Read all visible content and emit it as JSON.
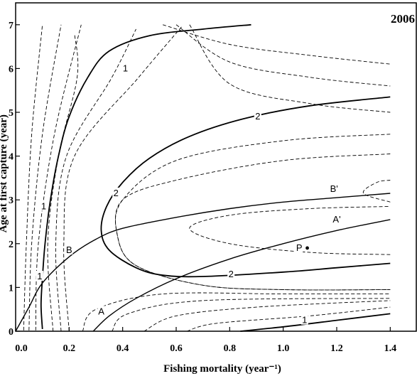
{
  "chart_data": {
    "type": "contour",
    "title": "2006",
    "xlabel": "Fishing mortality (year⁻¹)",
    "ylabel": "Age at first capture (year)",
    "xlim": [
      0,
      1.5
    ],
    "ylim": [
      0,
      7.5
    ],
    "xticks": [
      "0.0",
      "0.2",
      "0.4",
      "0.6",
      "0.8",
      "1.0",
      "1.2",
      "1.4"
    ],
    "yticks": [
      "0",
      "1",
      "2",
      "3",
      "4",
      "5",
      "6",
      "7"
    ],
    "contours_solid": [
      {
        "label": "1",
        "points": [
          [
            0.1,
            0.05
          ],
          [
            0.095,
            0.6
          ],
          [
            0.1,
            1.2
          ],
          [
            0.11,
            2.0
          ],
          [
            0.13,
            3.0
          ],
          [
            0.16,
            4.0
          ],
          [
            0.2,
            4.9
          ],
          [
            0.27,
            5.8
          ],
          [
            0.35,
            6.4
          ],
          [
            0.5,
            6.75
          ],
          [
            0.7,
            6.9
          ],
          [
            0.88,
            7.0
          ]
        ]
      },
      {
        "label": "2",
        "points": [
          [
            1.4,
            5.35
          ],
          [
            1.1,
            5.15
          ],
          [
            0.85,
            4.85
          ],
          [
            0.65,
            4.45
          ],
          [
            0.5,
            3.95
          ],
          [
            0.4,
            3.4
          ],
          [
            0.34,
            2.85
          ],
          [
            0.32,
            2.3
          ],
          [
            0.35,
            1.85
          ],
          [
            0.45,
            1.45
          ],
          [
            0.55,
            1.28
          ],
          [
            0.7,
            1.25
          ],
          [
            1.0,
            1.35
          ],
          [
            1.2,
            1.45
          ],
          [
            1.4,
            1.55
          ]
        ]
      },
      {
        "label": "1",
        "points": [
          [
            0.84,
            0.0
          ],
          [
            1.0,
            0.1
          ],
          [
            1.2,
            0.25
          ],
          [
            1.4,
            0.4
          ]
        ]
      }
    ],
    "lines": [
      {
        "name": "B",
        "points": [
          [
            0.0,
            0.0
          ],
          [
            0.05,
            0.55
          ],
          [
            0.1,
            1.1
          ],
          [
            0.2,
            1.7
          ],
          [
            0.3,
            2.1
          ],
          [
            0.4,
            2.35
          ],
          [
            0.6,
            2.6
          ],
          [
            0.8,
            2.8
          ],
          [
            1.0,
            2.95
          ],
          [
            1.2,
            3.05
          ],
          [
            1.4,
            3.15
          ]
        ]
      },
      {
        "name": "A",
        "points": [
          [
            0.29,
            0.0
          ],
          [
            0.35,
            0.35
          ],
          [
            0.45,
            0.75
          ],
          [
            0.6,
            1.2
          ],
          [
            0.8,
            1.65
          ],
          [
            1.0,
            2.0
          ],
          [
            1.2,
            2.3
          ],
          [
            1.4,
            2.55
          ]
        ]
      }
    ],
    "labels": [
      {
        "text": "1",
        "x": 0.41,
        "y": 6.0
      },
      {
        "text": "1",
        "x": 0.105,
        "y": 2.85
      },
      {
        "text": "1",
        "x": 0.09,
        "y": 1.25
      },
      {
        "text": "2",
        "x": 0.905,
        "y": 4.9
      },
      {
        "text": "2",
        "x": 0.375,
        "y": 3.15
      },
      {
        "text": "2",
        "x": 0.805,
        "y": 1.3
      },
      {
        "text": "1",
        "x": 1.08,
        "y": 0.25
      },
      {
        "text": "B",
        "x": 0.2,
        "y": 1.85
      },
      {
        "text": "A",
        "x": 0.32,
        "y": 0.45
      },
      {
        "text": "B'",
        "x": 1.19,
        "y": 3.25
      },
      {
        "text": "A'",
        "x": 1.2,
        "y": 2.55
      },
      {
        "text": "P",
        "x": 1.06,
        "y": 1.9
      }
    ],
    "point": {
      "name": "P",
      "x": 1.09,
      "y": 1.9
    }
  }
}
